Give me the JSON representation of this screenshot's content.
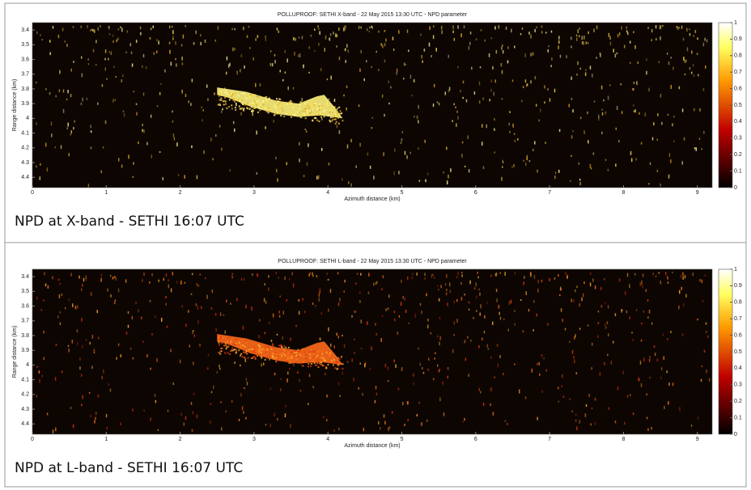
{
  "chart_data": [
    {
      "type": "heatmap",
      "title": "POLLUPROOF: SETHI X-band - 22 May 2015 13:30 UTC - NPD parameter",
      "xlabel": "Azimuth distance (km)",
      "ylabel": "Range distance (km)",
      "xlim": [
        0,
        9.2
      ],
      "xticks": [
        0,
        1,
        2,
        3,
        4,
        5,
        6,
        7,
        8,
        9
      ],
      "ylim": [
        3.35,
        4.47
      ],
      "y_inverted": true,
      "yticks": [
        3.4,
        3.5,
        3.6,
        3.7,
        3.8,
        3.9,
        4,
        4.1,
        4.2,
        4.3,
        4.4
      ],
      "colorbar_lim": [
        0,
        1
      ],
      "colorbar_ticks": [
        0,
        0.1,
        0.2,
        0.3,
        0.4,
        0.5,
        0.6,
        0.7,
        0.8,
        0.9,
        1
      ],
      "caption": "NPD at X-band - SETHI 16:07 UTC"
    },
    {
      "type": "heatmap",
      "title": "POLLUPROOF: SETHI L-band - 22 May 2015 13:30 UTC - NPD parameter",
      "xlabel": "Azimuth distance (km)",
      "ylabel": "Range distance (km)",
      "xlim": [
        0,
        9.2
      ],
      "xticks": [
        0,
        1,
        2,
        3,
        4,
        5,
        6,
        7,
        8,
        9
      ],
      "ylim": [
        3.35,
        4.47
      ],
      "y_inverted": true,
      "yticks": [
        3.4,
        3.5,
        3.6,
        3.7,
        3.8,
        3.9,
        4,
        4.1,
        4.2,
        4.3,
        4.4
      ],
      "colorbar_lim": [
        0,
        1
      ],
      "colorbar_ticks": [
        0,
        0.1,
        0.2,
        0.3,
        0.4,
        0.5,
        0.6,
        0.7,
        0.8,
        0.9,
        1
      ],
      "caption": "NPD at L-band - SETHI 16:07 UTC"
    }
  ]
}
